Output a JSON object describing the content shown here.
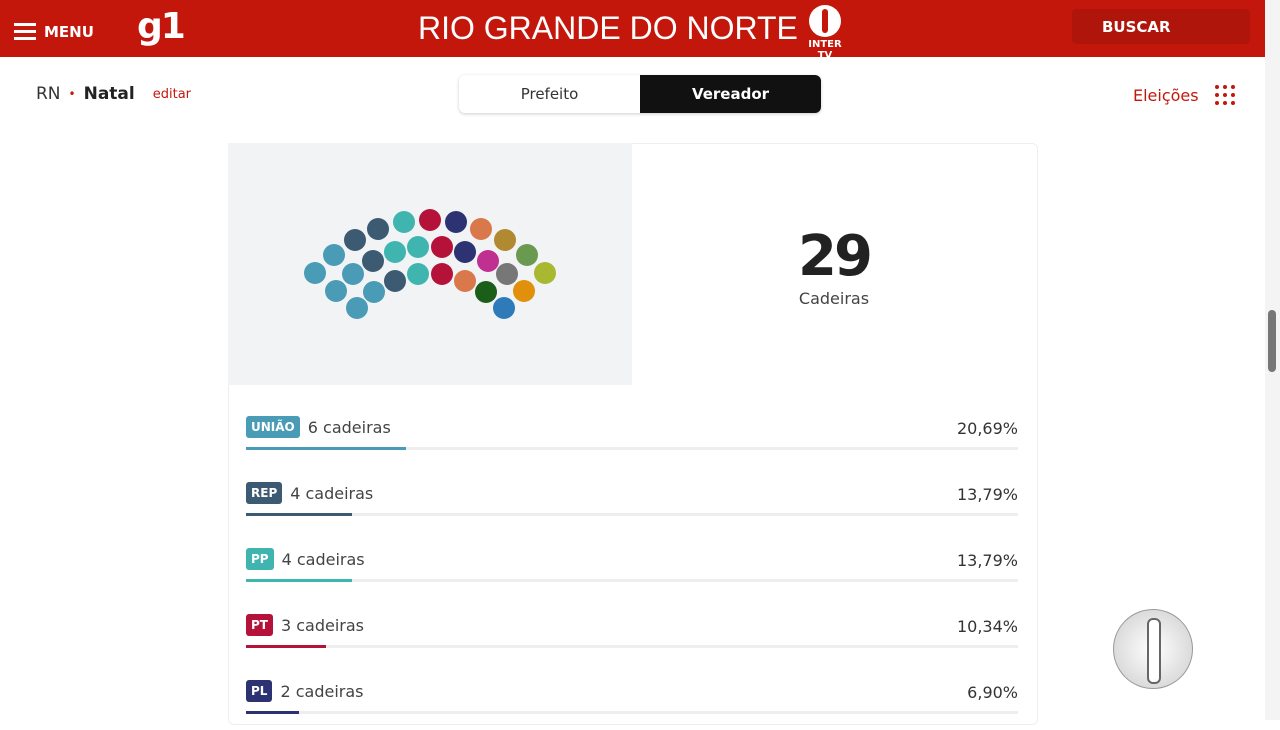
{
  "header": {
    "menu": "MENU",
    "logo": "g1",
    "title": "RIO GRANDE DO NORTE",
    "brand": "INTER TV",
    "search": "BUSCAR"
  },
  "breadcrumb": {
    "state": "RN",
    "city": "Natal",
    "edit": "editar"
  },
  "tabs": [
    "Prefeito",
    "Vereador"
  ],
  "elections_link": "Eleições",
  "summary": {
    "total": 29,
    "label": "Cadeiras"
  },
  "parties": [
    {
      "code": "UNIÃO",
      "seats": 6,
      "seats_label": "6 cadeiras",
      "share": "20,69%",
      "color": "#4a9bb5"
    },
    {
      "code": "REP",
      "seats": 4,
      "seats_label": "4 cadeiras",
      "share": "13,79%",
      "color": "#3d5a73"
    },
    {
      "code": "PP",
      "seats": 4,
      "seats_label": "4 cadeiras",
      "share": "13,79%",
      "color": "#40b5b0"
    },
    {
      "code": "PT",
      "seats": 3,
      "seats_label": "3 cadeiras",
      "share": "10,34%",
      "color": "#b5123a"
    },
    {
      "code": "PL",
      "seats": 2,
      "seats_label": "2 cadeiras",
      "share": "6,90%",
      "color": "#2d3272"
    }
  ]
}
